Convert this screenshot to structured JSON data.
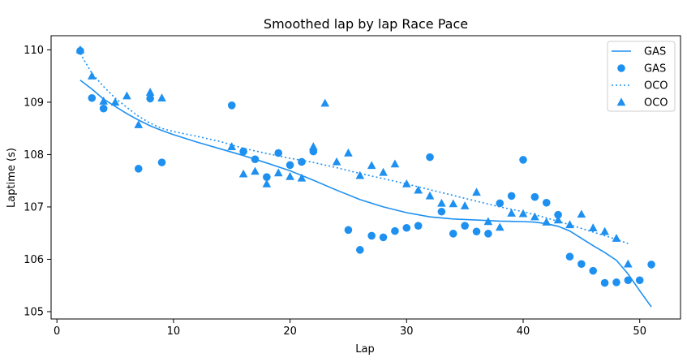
{
  "chart_data": {
    "type": "scatter",
    "title": "Smoothed lap by lap Race Pace",
    "xlabel": "Lap",
    "ylabel": "Laptime (s)",
    "xlim": [
      -0.5,
      53.5
    ],
    "ylim": [
      104.86,
      110.27
    ],
    "xticks": [
      0,
      10,
      20,
      30,
      40,
      50
    ],
    "yticks": [
      105,
      106,
      107,
      108,
      109,
      110
    ],
    "grid": false,
    "legend_position": "top-right",
    "color": "#1e90f0",
    "legend": [
      {
        "label": "GAS",
        "kind": "line-solid"
      },
      {
        "label": "GAS",
        "kind": "marker-circle"
      },
      {
        "label": "OCO",
        "kind": "line-dotted"
      },
      {
        "label": "OCO",
        "kind": "marker-triangle"
      }
    ],
    "series": [
      {
        "name": "GAS",
        "style": "scatter",
        "marker": "circle",
        "x": [
          2,
          3,
          4,
          7,
          8,
          9,
          15,
          16,
          17,
          18,
          19,
          20,
          21,
          22,
          25,
          26,
          27,
          28,
          29,
          30,
          31,
          32,
          33,
          34,
          35,
          36,
          37,
          38,
          39,
          40,
          41,
          42,
          43,
          44,
          45,
          46,
          47,
          48,
          49,
          50,
          51
        ],
        "y": [
          109.98,
          109.08,
          108.88,
          107.73,
          109.07,
          107.85,
          108.94,
          108.06,
          107.91,
          107.57,
          108.03,
          107.8,
          107.86,
          108.06,
          106.56,
          106.18,
          106.45,
          106.42,
          106.54,
          106.6,
          106.64,
          107.95,
          106.91,
          106.49,
          106.64,
          106.53,
          106.49,
          107.07,
          107.21,
          107.9,
          107.19,
          107.08,
          106.85,
          106.05,
          105.91,
          105.78,
          105.55,
          105.56,
          105.6,
          105.6,
          105.9
        ]
      },
      {
        "name": "GAS",
        "style": "line",
        "dash": "solid",
        "x": [
          2,
          3,
          4,
          5,
          6,
          7,
          8,
          9,
          10,
          12,
          14,
          16,
          18,
          20,
          22,
          24,
          26,
          28,
          30,
          32,
          34,
          36,
          38,
          40,
          41,
          42,
          43,
          44,
          45,
          46,
          47,
          48,
          49,
          50,
          51
        ],
        "y": [
          109.42,
          109.25,
          109.06,
          108.92,
          108.78,
          108.66,
          108.55,
          108.46,
          108.38,
          108.24,
          108.11,
          107.98,
          107.84,
          107.69,
          107.51,
          107.32,
          107.14,
          107.0,
          106.89,
          106.81,
          106.77,
          106.75,
          106.73,
          106.72,
          106.71,
          106.68,
          106.63,
          106.54,
          106.4,
          106.26,
          106.13,
          105.98,
          105.72,
          105.4,
          105.09
        ]
      },
      {
        "name": "OCO",
        "style": "scatter",
        "marker": "triangle",
        "x": [
          2,
          3,
          4,
          5,
          6,
          7,
          8,
          9,
          15,
          16,
          17,
          18,
          19,
          20,
          21,
          22,
          23,
          24,
          25,
          26,
          27,
          28,
          29,
          30,
          31,
          32,
          33,
          34,
          35,
          36,
          37,
          38,
          39,
          40,
          41,
          42,
          43,
          44,
          45,
          46,
          47,
          48,
          49
        ],
        "y": [
          110.0,
          109.5,
          109.02,
          109.0,
          109.12,
          108.57,
          109.19,
          109.08,
          108.15,
          107.63,
          107.68,
          107.44,
          107.65,
          107.58,
          107.55,
          108.15,
          108.98,
          107.86,
          108.03,
          107.6,
          107.79,
          107.66,
          107.82,
          107.44,
          107.32,
          107.21,
          107.07,
          107.06,
          107.02,
          107.28,
          106.72,
          106.61,
          106.88,
          106.87,
          106.81,
          106.71,
          106.75,
          106.66,
          106.86,
          106.6,
          106.53,
          106.4,
          105.91
        ]
      },
      {
        "name": "OCO",
        "style": "line",
        "dash": "dotted",
        "x": [
          2,
          3,
          4,
          5,
          6,
          7,
          8,
          9,
          10,
          12,
          14,
          16,
          18,
          20,
          22,
          24,
          26,
          28,
          30,
          32,
          34,
          36,
          38,
          40,
          42,
          44,
          46,
          48,
          49
        ],
        "y": [
          109.93,
          109.55,
          109.3,
          109.08,
          108.9,
          108.73,
          108.6,
          108.5,
          108.44,
          108.35,
          108.25,
          108.12,
          108.02,
          107.93,
          107.85,
          107.75,
          107.64,
          107.54,
          107.44,
          107.33,
          107.22,
          107.11,
          107.0,
          106.91,
          106.79,
          106.66,
          106.52,
          106.38,
          106.3
        ]
      }
    ]
  }
}
